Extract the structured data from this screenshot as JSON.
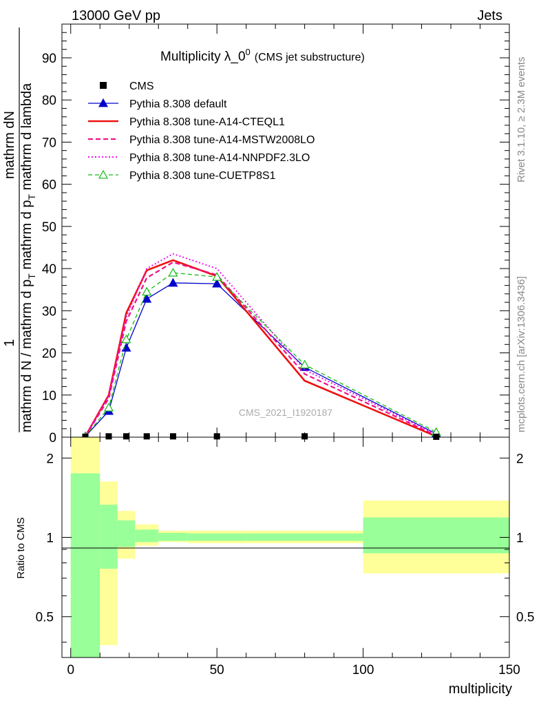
{
  "header": {
    "left": "13000 GeV pp",
    "right": "Jets"
  },
  "side_labels": {
    "rivet": "Rivet 3.1.10, ≥ 2.3M events",
    "mcplots": "mcplots.cern.ch [arXiv:1306.3436]"
  },
  "watermark": "CMS_2021_I1920187",
  "title": {
    "main": "Multiplicity λ_0",
    "sup": "0",
    "sub": "(CMS jet substructure)"
  },
  "ylabel_top": {
    "num": "1",
    "mid": "mathrm d N / mathrm d p",
    "mid_sub": "T",
    "mid2": " mathrm d p",
    "mid2_sub": "T",
    "mid3": " mathrm d lambda",
    "den": "mathrm dN",
    "den_pre": "mathrm d p",
    "den_sub": "T"
  },
  "ylabel_ratio": "Ratio to CMS",
  "xlabel": "multiplicity",
  "legend": [
    {
      "label": "CMS",
      "color": "#000000",
      "style": "marker-square"
    },
    {
      "label": "Pythia 8.308 default",
      "color": "#0000cc",
      "style": "solid-triangle"
    },
    {
      "label": "Pythia 8.308 tune-A14-CTEQL1",
      "color": "#ee1111",
      "style": "solid-thick"
    },
    {
      "label": "Pythia 8.308 tune-A14-MSTW2008LO",
      "color": "#ee1188",
      "style": "dashed"
    },
    {
      "label": "Pythia 8.308 tune-A14-NNPDF2.3LO",
      "color": "#ee11ee",
      "style": "dotted"
    },
    {
      "label": "Pythia 8.308 tune-CUETP8S1",
      "color": "#11bb11",
      "style": "dashed-open-triangle"
    }
  ],
  "chart_data": {
    "type": "line",
    "xlim": [
      -3,
      150
    ],
    "ylim_top": [
      0,
      98
    ],
    "ylim_ratio_log": [
      0.35,
      2.4
    ],
    "x_ticks": [
      "0",
      "50",
      "100",
      "150"
    ],
    "y_ticks_top": [
      "0",
      "10",
      "20",
      "30",
      "40",
      "50",
      "60",
      "70",
      "80",
      "90"
    ],
    "y_ticks_ratio": [
      "0.5",
      "1",
      "2"
    ],
    "cms": {
      "x": [
        5,
        13,
        19,
        26,
        35,
        50,
        80,
        125
      ],
      "y": [
        0.1,
        0.2,
        0.2,
        0.2,
        0.2,
        0.2,
        0.2,
        0.1
      ]
    },
    "series": [
      {
        "name": "Pythia 8.308 default",
        "x": [
          5,
          13,
          19,
          26,
          35,
          50,
          80,
          125
        ],
        "y": [
          0.2,
          6.2,
          21.2,
          32.8,
          36.6,
          36.4,
          16.6,
          0.8
        ]
      },
      {
        "name": "Pythia 8.308 tune-A14-CTEQL1",
        "x": [
          5,
          13,
          19,
          26,
          35,
          50,
          80,
          125
        ],
        "y": [
          0.2,
          10.0,
          29.5,
          39.6,
          42.0,
          38.2,
          13.4,
          0.2
        ]
      },
      {
        "name": "Pythia 8.308 tune-A14-MSTW2008LO",
        "x": [
          5,
          13,
          19,
          26,
          35,
          50,
          80,
          125
        ],
        "y": [
          0.2,
          9.2,
          27.5,
          37.8,
          41.5,
          38.5,
          15.0,
          0.4
        ]
      },
      {
        "name": "Pythia 8.308 tune-A14-NNPDF2.3LO",
        "x": [
          5,
          13,
          19,
          26,
          35,
          50,
          80,
          125
        ],
        "y": [
          0.2,
          9.8,
          28.5,
          40.0,
          43.5,
          40.0,
          16.0,
          0.6
        ]
      },
      {
        "name": "Pythia 8.308 tune-CUETP8S1",
        "x": [
          5,
          13,
          19,
          26,
          35,
          50,
          80,
          125
        ],
        "y": [
          0.2,
          7.0,
          23.2,
          34.5,
          39.0,
          38.0,
          17.2,
          1.2
        ]
      }
    ],
    "ratio_bands": {
      "bins": [
        [
          0,
          10
        ],
        [
          10,
          16
        ],
        [
          16,
          22
        ],
        [
          22,
          30
        ],
        [
          30,
          40
        ],
        [
          40,
          60
        ],
        [
          60,
          100
        ],
        [
          100,
          150
        ]
      ],
      "green": [
        [
          0.35,
          1.75
        ],
        [
          0.76,
          1.33
        ],
        [
          0.92,
          1.16
        ],
        [
          0.96,
          1.07
        ],
        [
          0.97,
          1.04
        ],
        [
          0.97,
          1.035
        ],
        [
          0.97,
          1.035
        ],
        [
          0.87,
          1.19
        ]
      ],
      "yellow": [
        [
          0.35,
          2.4
        ],
        [
          0.39,
          1.63
        ],
        [
          0.83,
          1.26
        ],
        [
          0.93,
          1.12
        ],
        [
          0.96,
          1.06
        ],
        [
          0.95,
          1.06
        ],
        [
          0.95,
          1.06
        ],
        [
          0.73,
          1.38
        ]
      ],
      "green_color": "#99ff99",
      "yellow_color": "#ffff99"
    }
  }
}
